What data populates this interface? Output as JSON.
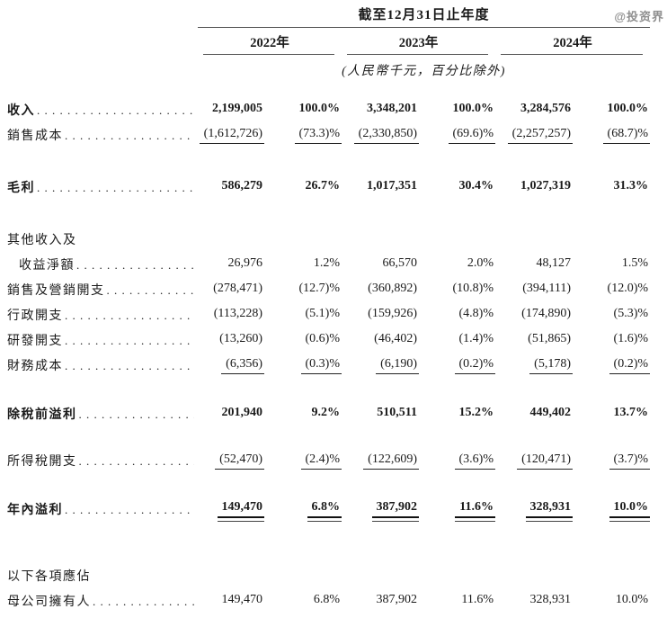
{
  "colors": {
    "text": "#1a1a1a",
    "header_rule": "#555555",
    "row_rule": "#222222",
    "watermark": "#8f8f8f"
  },
  "watermark": "@投资界",
  "header": {
    "period_title": "截至12月31日止年度",
    "years": [
      "2022年",
      "2023年",
      "2024年"
    ],
    "unit_note": "(人民幣千元，百分比除外)"
  },
  "columns": [
    "2022年 金額",
    "2022年 %",
    "2023年 金額",
    "2023年 %",
    "2024年 金額",
    "2024年 %"
  ],
  "rows": [
    {
      "label": "收入",
      "bold": true,
      "leader": true,
      "indent": false,
      "underline": "none",
      "gap_before": 0,
      "values": [
        "2,199,005",
        "100.0%",
        "3,348,201",
        "100.0%",
        "3,284,576",
        "100.0%"
      ]
    },
    {
      "label": "銷售成本",
      "bold": false,
      "leader": true,
      "indent": false,
      "underline": "single",
      "gap_before": 0,
      "values": [
        "(1,612,726)",
        "(73.3)%",
        "(2,330,850)",
        "(69.6)%",
        "(2,257,257)",
        "(68.7)%"
      ]
    },
    {
      "label": "毛利",
      "bold": true,
      "leader": true,
      "indent": false,
      "underline": "none",
      "gap_before": 30,
      "values": [
        "586,279",
        "26.7%",
        "1,017,351",
        "30.4%",
        "1,027,319",
        "31.3%"
      ]
    },
    {
      "label": "其他收入及",
      "bold": false,
      "leader": false,
      "indent": false,
      "underline": "none",
      "gap_before": 30,
      "values": [
        "",
        "",
        "",
        "",
        "",
        ""
      ]
    },
    {
      "label": "收益淨額",
      "bold": false,
      "leader": true,
      "indent": true,
      "underline": "none",
      "gap_before": 0,
      "values": [
        "26,976",
        "1.2%",
        "66,570",
        "2.0%",
        "48,127",
        "1.5%"
      ]
    },
    {
      "label": "銷售及營銷開支",
      "bold": false,
      "leader": true,
      "indent": false,
      "underline": "none",
      "gap_before": 0,
      "values": [
        "(278,471)",
        "(12.7)%",
        "(360,892)",
        "(10.8)%",
        "(394,111)",
        "(12.0)%"
      ]
    },
    {
      "label": "行政開支",
      "bold": false,
      "leader": true,
      "indent": false,
      "underline": "none",
      "gap_before": 0,
      "values": [
        "(113,228)",
        "(5.1)%",
        "(159,926)",
        "(4.8)%",
        "(174,890)",
        "(5.3)%"
      ]
    },
    {
      "label": "研發開支",
      "bold": false,
      "leader": true,
      "indent": false,
      "underline": "none",
      "gap_before": 0,
      "values": [
        "(13,260)",
        "(0.6)%",
        "(46,402)",
        "(1.4)%",
        "(51,865)",
        "(1.6)%"
      ]
    },
    {
      "label": "財務成本",
      "bold": false,
      "leader": true,
      "indent": false,
      "underline": "single",
      "gap_before": 0,
      "values": [
        "(6,356)",
        "(0.3)%",
        "(6,190)",
        "(0.2)%",
        "(5,178)",
        "(0.2)%"
      ]
    },
    {
      "label": "除稅前溢利",
      "bold": true,
      "leader": true,
      "indent": false,
      "underline": "none",
      "gap_before": 26,
      "values": [
        "201,940",
        "9.2%",
        "510,511",
        "15.2%",
        "449,402",
        "13.7%"
      ]
    },
    {
      "label": "所得稅開支",
      "bold": false,
      "leader": true,
      "indent": false,
      "underline": "single",
      "gap_before": 24,
      "values": [
        "(52,470)",
        "(2.4)%",
        "(122,609)",
        "(3.6)%",
        "(120,471)",
        "(3.7)%"
      ]
    },
    {
      "label": "年內溢利",
      "bold": true,
      "leader": true,
      "indent": false,
      "underline": "double",
      "gap_before": 26,
      "values": [
        "149,470",
        "6.8%",
        "387,902",
        "11.6%",
        "328,931",
        "10.0%"
      ]
    },
    {
      "label": "以下各項應佔",
      "bold": false,
      "leader": false,
      "indent": false,
      "underline": "none",
      "gap_before": 46,
      "values": [
        "",
        "",
        "",
        "",
        "",
        ""
      ]
    },
    {
      "label": "母公司擁有人",
      "bold": false,
      "leader": true,
      "indent": false,
      "underline": "none",
      "gap_before": 0,
      "values": [
        "149,470",
        "6.8%",
        "387,902",
        "11.6%",
        "328,931",
        "10.0%"
      ]
    }
  ]
}
